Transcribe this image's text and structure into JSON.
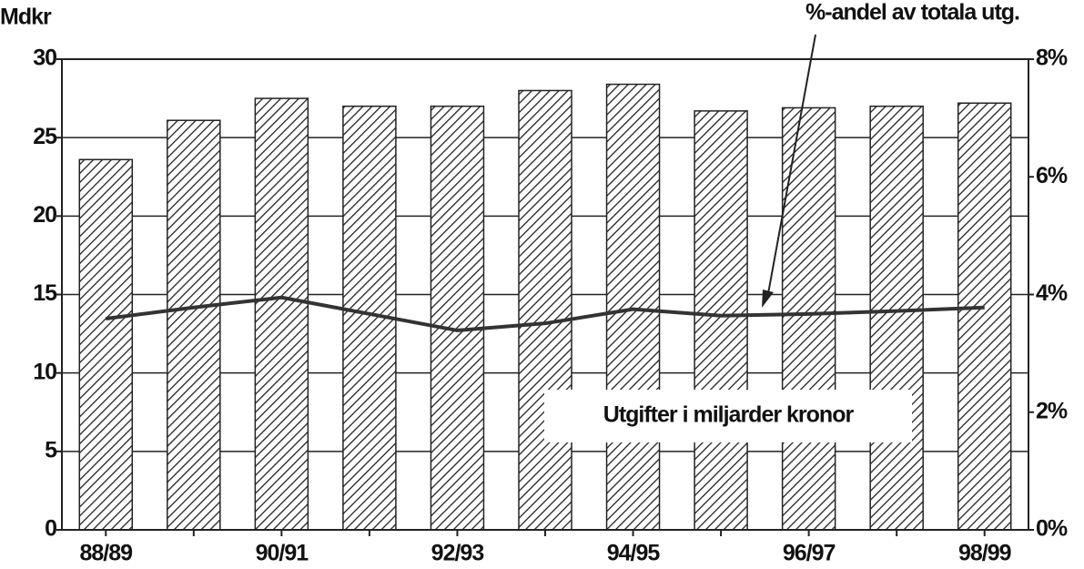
{
  "chart_data": {
    "type": "bar_line",
    "y_label": "Mdkr",
    "categories": [
      "88/89",
      null,
      "90/91",
      null,
      "92/93",
      null,
      "94/95",
      null,
      "96/97",
      null,
      "98/99"
    ],
    "series": [
      {
        "name": "Utgifter i miljarder kronor",
        "type": "bar",
        "color": "#222222",
        "values": [
          23.6,
          26.1,
          27.5,
          27.0,
          27.0,
          28.0,
          28.4,
          26.7,
          26.9,
          27.0,
          27.2
        ]
      },
      {
        "name": "%-andel av totala utg.",
        "type": "line",
        "axis": "y2",
        "color": "#333333",
        "values": [
          3.59,
          3.78,
          3.95,
          3.67,
          3.39,
          3.51,
          3.75,
          3.64,
          3.67,
          3.72,
          3.78
        ]
      }
    ],
    "ylim": [
      0,
      30
    ],
    "yticks": [
      0,
      5,
      10,
      15,
      20,
      25,
      30
    ],
    "y2lim": [
      0,
      8
    ],
    "y2ticks": [
      {
        "value": 0,
        "label": "0%"
      },
      {
        "value": 2,
        "label": "2%"
      },
      {
        "value": 4,
        "label": "4%"
      },
      {
        "value": 6,
        "label": "6%"
      },
      {
        "value": 8,
        "label": "8%"
      }
    ],
    "grid": true
  }
}
